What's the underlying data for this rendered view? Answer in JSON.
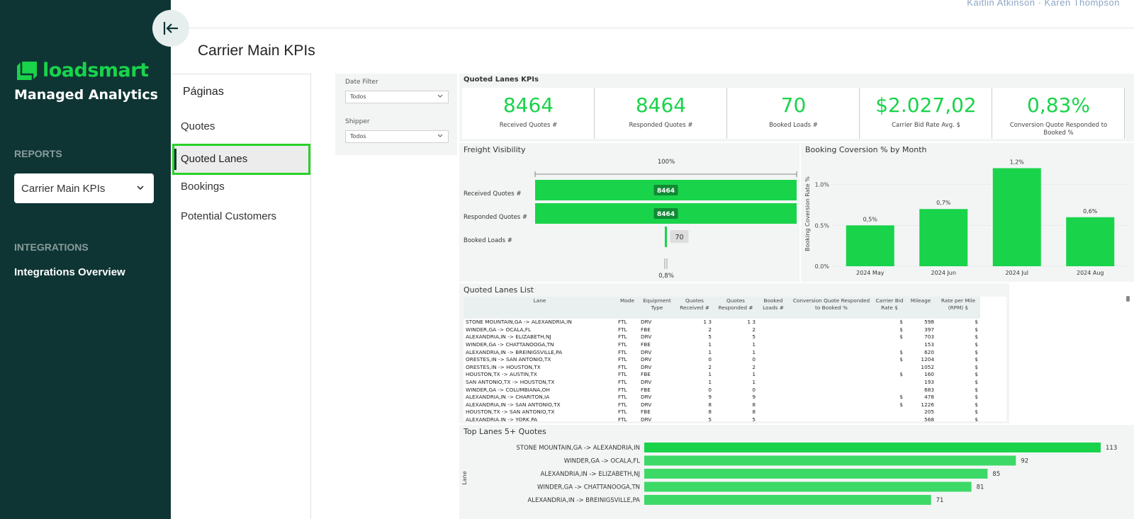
{
  "sidebar": {
    "brand": "loadsmart",
    "app_title": "Managed Analytics",
    "reports_label": "REPORTS",
    "selected_report": "Carrier Main KPIs",
    "integrations_label": "INTEGRATIONS",
    "integrations_item": "Integrations Overview"
  },
  "topbar": {
    "users": "Kaitlin Atkinson  ·  Karen Thompson"
  },
  "page_title": "Carrier Main KPIs",
  "pages": {
    "header": "Páginas",
    "items": [
      "Quotes",
      "Quoted Lanes",
      "Bookings",
      "Potential Customers"
    ],
    "active": "Quoted Lanes"
  },
  "filters": {
    "date_label": "Date Filter",
    "date_value": "Todos",
    "shipper_label": "Shipper",
    "shipper_value": "Todos"
  },
  "kpis": {
    "title": "Quoted Lanes KPIs",
    "cards": [
      {
        "value": "8464",
        "label": "Received Quotes #"
      },
      {
        "value": "8464",
        "label": "Responded Quotes #"
      },
      {
        "value": "70",
        "label": "Booked Loads #"
      },
      {
        "value": "$2.027,02",
        "label": "Carrier Bid Rate Avg. $"
      },
      {
        "value": "0,83%",
        "label": "Conversion Quote Responded to Booked %"
      }
    ]
  },
  "freight": {
    "title": "Freight Visibility",
    "top_label": "100%",
    "bottom_label": "0,8%",
    "rows": [
      {
        "label": "Received Quotes #",
        "value": 8464,
        "display": "8464"
      },
      {
        "label": "Responded Quotes #",
        "value": 8464,
        "display": "8464"
      },
      {
        "label": "Booked Loads #",
        "value": 70,
        "display": "70"
      }
    ]
  },
  "chart_data": [
    {
      "type": "bar",
      "title": "Booking Coversion % by Month",
      "ylabel": "Booking Coversion Rate %",
      "xlabel": "",
      "categories": [
        "2024 May",
        "2024 Jun",
        "2024 Jul",
        "2024 Aug"
      ],
      "values": [
        0.5,
        0.7,
        1.2,
        0.6
      ],
      "data_labels": [
        "0,5%",
        "0,7%",
        "1,2%",
        "0,6%"
      ],
      "yticks": [
        "0.0%",
        "0.5%",
        "1.0%"
      ],
      "ylim": [
        0,
        1.3
      ],
      "color": "#19d34a"
    },
    {
      "type": "bar",
      "orientation": "horizontal",
      "title": "Top Lanes 5+ Quotes",
      "ylabel": "Lane",
      "categories": [
        "STONE MOUNTAIN,GA -> ALEXANDRIA,IN",
        "WINDER,GA -> OCALA,FL",
        "ALEXANDRIA,IN -> ELIZABETH,NJ",
        "WINDER,GA -> CHATTANOOGA,TN",
        "ALEXANDRIA,IN -> BREINIGSVILLE,PA"
      ],
      "values": [
        113,
        92,
        85,
        81,
        71
      ],
      "color": "#19d34a"
    }
  ],
  "lanes_list": {
    "title": "Quoted Lanes List",
    "columns": [
      "Lane",
      "Mode",
      "Equipment Type",
      "Quotes Received #",
      "Quotes Responded #",
      "Booked Loads #",
      "Conversion Quote Responded to Booked %",
      "Carrier Bid Rate $",
      "Mileage",
      "Rate per Mile (RPM) $"
    ],
    "rows": [
      [
        "STONE MOUNTAIN,GA -> ALEXANDRIA,IN",
        "FTL",
        "DRV",
        "1 3",
        "1 3",
        "",
        "",
        "$",
        "598",
        "$"
      ],
      [
        "WINDER,GA -> OCALA,FL",
        "FTL",
        "FBE",
        "2",
        "2",
        "",
        "",
        "$",
        "397",
        "$"
      ],
      [
        "ALEXANDRIA,IN -> ELIZABETH,NJ",
        "FTL",
        "DRV",
        "5",
        "5",
        "",
        "",
        "$",
        "703",
        "$"
      ],
      [
        "WINDER,GA -> CHATTANOOGA,TN",
        "FTL",
        "FBE",
        "1",
        "1",
        "",
        "",
        "",
        "153",
        "$"
      ],
      [
        "ALEXANDRIA,IN -> BREINIGSVILLE,PA",
        "FTL",
        "DRV",
        "1",
        "1",
        "",
        "",
        "$",
        "620",
        "$"
      ],
      [
        "ORESTES,IN -> SAN ANTONIO,TX",
        "FTL",
        "DRV",
        "0",
        "0",
        "",
        "",
        "$",
        "1204",
        "$"
      ],
      [
        "ORESTES,IN -> HOUSTON,TX",
        "FTL",
        "DRV",
        "2",
        "2",
        "",
        "",
        "",
        "1052",
        "$"
      ],
      [
        "HOUSTON,TX -> AUSTIN,TX",
        "FTL",
        "FBE",
        "1",
        "1",
        "",
        "",
        "$",
        "160",
        "$"
      ],
      [
        "SAN ANTONIO,TX -> HOUSTON,TX",
        "FTL",
        "DRV",
        "1",
        "1",
        "",
        "",
        "",
        "193",
        "$"
      ],
      [
        "WINDER,GA -> COLUMBIANA,OH",
        "FTL",
        "FBE",
        "0",
        "0",
        "",
        "",
        "",
        "683",
        "$"
      ],
      [
        "ALEXANDRIA,IN -> CHARITON,IA",
        "FTL",
        "DRV",
        "9",
        "9",
        "",
        "",
        "$",
        "478",
        "$"
      ],
      [
        "ALEXANDRIA,IN -> SAN ANTONIO,TX",
        "FTL",
        "DRV",
        "8",
        "8",
        "",
        "",
        "$",
        "1226",
        "$"
      ],
      [
        "HOUSTON,TX -> SAN ANTONIO,TX",
        "FTL",
        "FBE",
        "8",
        "8",
        "",
        "",
        "",
        "205",
        "$"
      ],
      [
        "ALEXANDRIA,IN -> YORK,PA",
        "FTL",
        "DRV",
        "5",
        "5",
        "",
        "",
        "",
        "568",
        "$"
      ]
    ]
  }
}
